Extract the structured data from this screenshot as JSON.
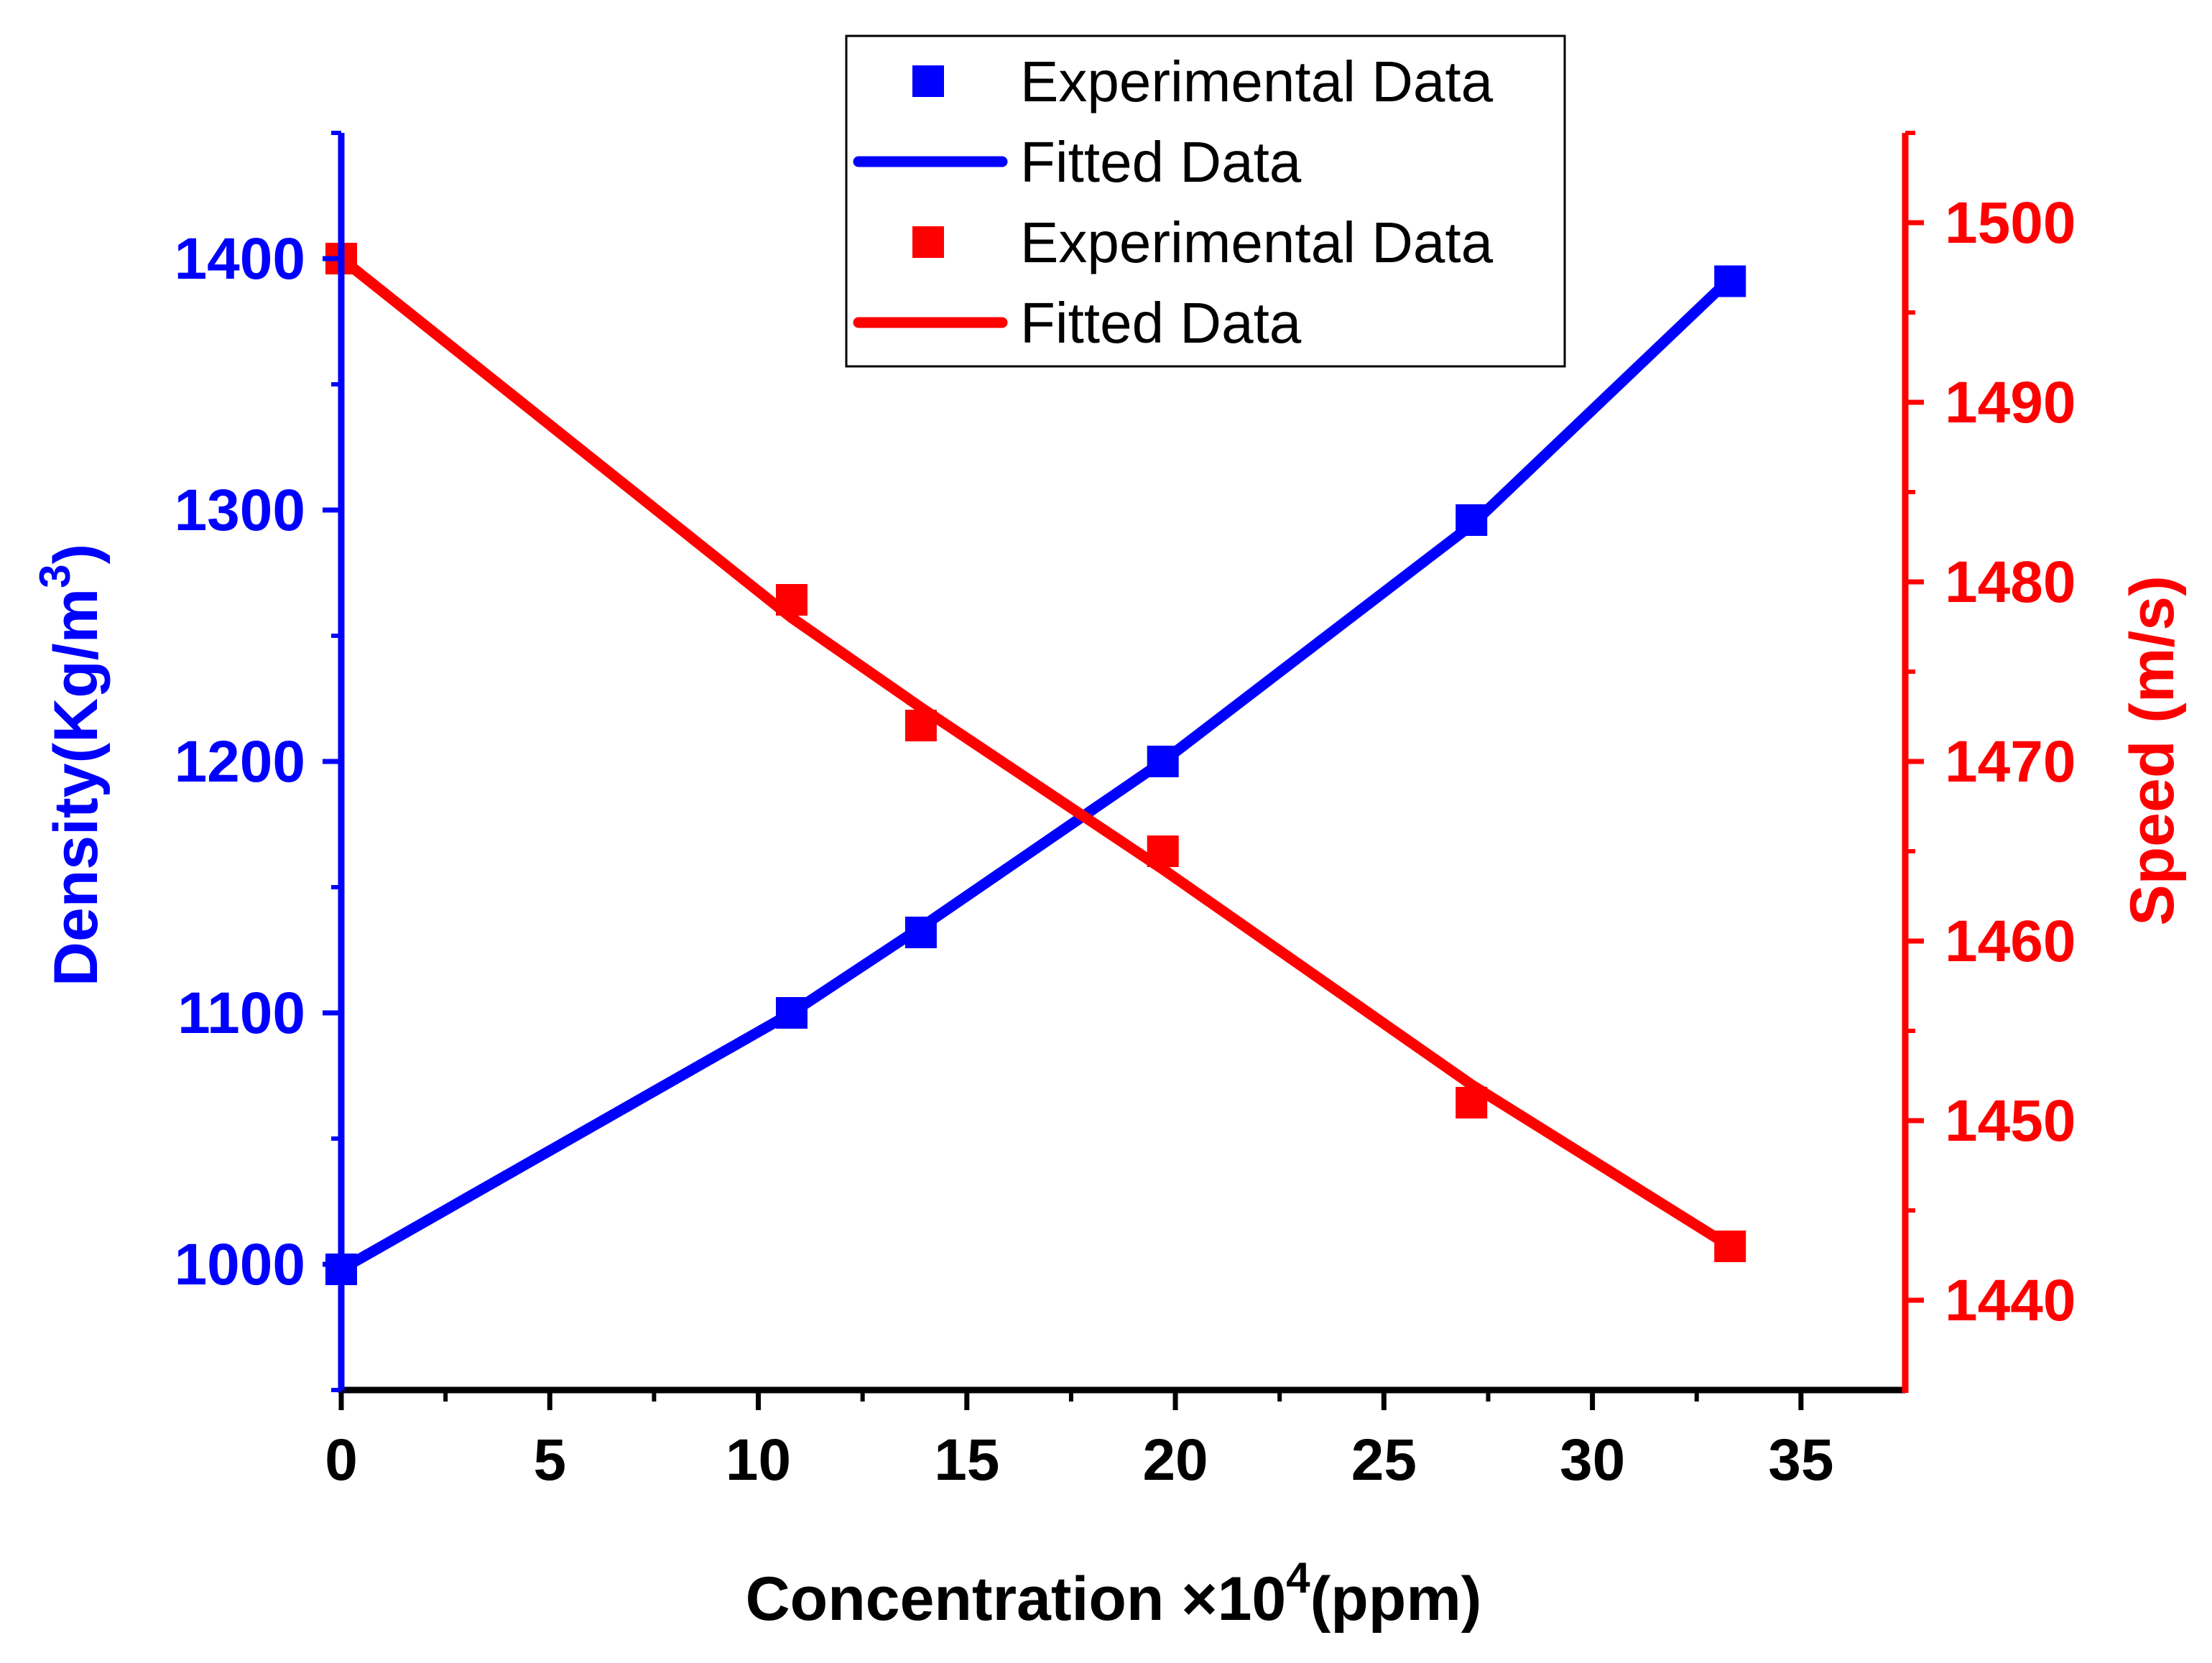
{
  "chart_data": {
    "type": "line",
    "x": [
      0,
      10.8,
      13.9,
      19.7,
      27.1,
      33.3
    ],
    "xlabel_main": "Concentration ×10",
    "xlabel_sup": "4",
    "xlabel_tail": "(ppm)",
    "xlim": [
      0,
      37.5
    ],
    "xticks": [
      0,
      5,
      10,
      15,
      20,
      25,
      30,
      35
    ],
    "ylabel_left_main": "Density(Kg/m",
    "ylabel_left_sup": "3",
    "ylabel_left_tail": ")",
    "ylim_left": [
      950,
      1450
    ],
    "yticks_left": [
      1000,
      1100,
      1200,
      1300,
      1400
    ],
    "ylabel_right": "Speed (m/s)",
    "ylim_right": [
      1435,
      1505
    ],
    "yticks_right": [
      1440,
      1450,
      1460,
      1470,
      1480,
      1490,
      1500
    ],
    "series": [
      {
        "name": "Experimental Data",
        "axis": "left",
        "kind": "scatter",
        "color": "#0000FF",
        "values": [
          998,
          1100,
          1132,
          1200,
          1296,
          1391
        ]
      },
      {
        "name": "Fitted Data",
        "axis": "left",
        "kind": "line",
        "color": "#0000FF",
        "values": [
          998,
          1100,
          1134,
          1200,
          1294,
          1392
        ]
      },
      {
        "name": "Experimental Data",
        "axis": "right",
        "kind": "scatter",
        "color": "#FF0000",
        "values": [
          1498,
          1479,
          1472,
          1465,
          1451,
          1443
        ]
      },
      {
        "name": "Fitted Data",
        "axis": "right",
        "kind": "line",
        "color": "#FF0000",
        "values": [
          1498,
          1478,
          1473,
          1464,
          1452,
          1443
        ]
      }
    ],
    "legend": {
      "position": "top-center",
      "entries": [
        "Experimental Data",
        "Fitted Data",
        "Experimental Data",
        "Fitted Data"
      ]
    }
  }
}
